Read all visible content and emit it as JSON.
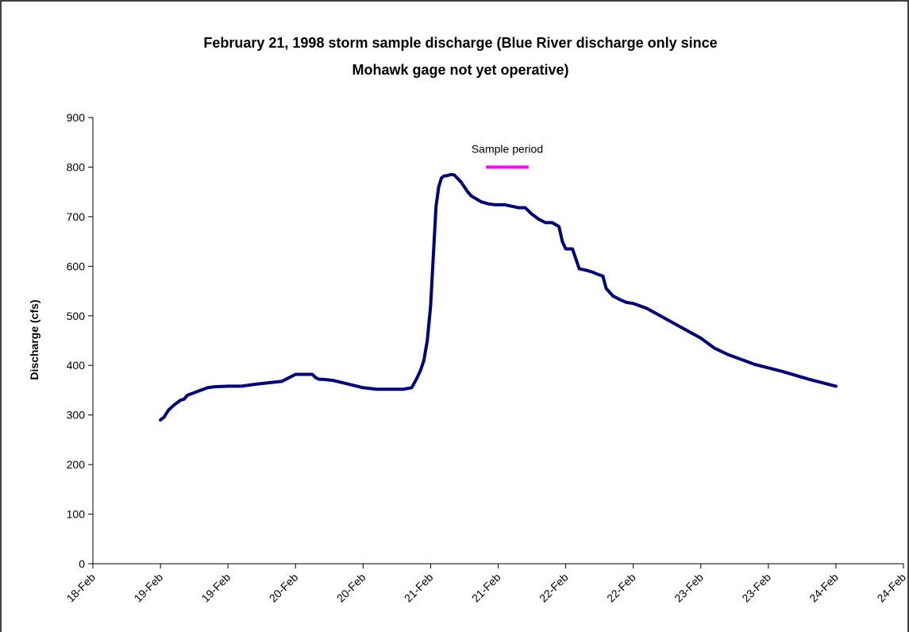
{
  "chart_data": {
    "type": "line",
    "title": "February 21, 1998 storm sample discharge (Blue River discharge only since Mohawk gage not yet operative)",
    "title_lines": [
      "February 21, 1998 storm sample discharge (Blue River discharge only since",
      "Mohawk gage not yet operative)"
    ],
    "xlabel": "",
    "ylabel": "Discharge (cfs)",
    "ylim": [
      0,
      900
    ],
    "y_ticks": [
      0,
      100,
      200,
      300,
      400,
      500,
      600,
      700,
      800,
      900
    ],
    "xlim": [
      0,
      12
    ],
    "x_tick_labels": [
      "18-Feb",
      "19-Feb",
      "19-Feb",
      "20-Feb",
      "20-Feb",
      "21-Feb",
      "21-Feb",
      "22-Feb",
      "22-Feb",
      "23-Feb",
      "23-Feb",
      "24-Feb",
      "24-Feb"
    ],
    "grid": false,
    "legend": "none",
    "series": [
      {
        "color": "#00007f",
        "x": [
          1.0,
          1.05,
          1.12,
          1.2,
          1.3,
          1.35,
          1.4,
          1.5,
          1.6,
          1.7,
          1.8,
          2.0,
          2.2,
          2.4,
          2.6,
          2.8,
          3.0,
          3.2,
          3.25,
          3.3,
          3.35,
          3.4,
          3.55,
          3.7,
          3.85,
          4.0,
          4.2,
          4.4,
          4.6,
          4.72,
          4.8,
          4.85,
          4.9,
          4.95,
          5.0,
          5.04,
          5.08,
          5.12,
          5.16,
          5.2,
          5.25,
          5.3,
          5.35,
          5.45,
          5.55,
          5.6,
          5.65,
          5.75,
          5.85,
          5.95,
          6.1,
          6.3,
          6.4,
          6.5,
          6.55,
          6.6,
          6.7,
          6.8,
          6.9,
          6.95,
          7.0,
          7.1,
          7.2,
          7.3,
          7.4,
          7.45,
          7.55,
          7.6,
          7.7,
          7.8,
          7.9,
          8.0,
          8.2,
          8.4,
          8.6,
          8.8,
          9.0,
          9.2,
          9.4,
          9.6,
          9.8,
          10.0,
          10.2,
          10.4,
          10.6,
          10.8,
          11.0
        ],
        "y": [
          290,
          295,
          310,
          320,
          330,
          332,
          340,
          345,
          350,
          355,
          357,
          358,
          358,
          362,
          365,
          368,
          382,
          382,
          382,
          375,
          372,
          372,
          370,
          365,
          360,
          355,
          352,
          352,
          352,
          355,
          375,
          390,
          410,
          450,
          520,
          620,
          720,
          760,
          778,
          782,
          783,
          785,
          784,
          770,
          750,
          742,
          738,
          730,
          726,
          724,
          724,
          718,
          718,
          705,
          700,
          695,
          688,
          688,
          680,
          650,
          635,
          635,
          595,
          592,
          588,
          585,
          580,
          555,
          540,
          533,
          527,
          525,
          515,
          500,
          485,
          470,
          455,
          435,
          422,
          412,
          402,
          395,
          388,
          380,
          372,
          365,
          358
        ]
      }
    ],
    "annotations": [
      {
        "text": "Sample period",
        "x_range": [
          5.82,
          6.45
        ],
        "y": 800,
        "color": "#ff00ff"
      }
    ]
  }
}
